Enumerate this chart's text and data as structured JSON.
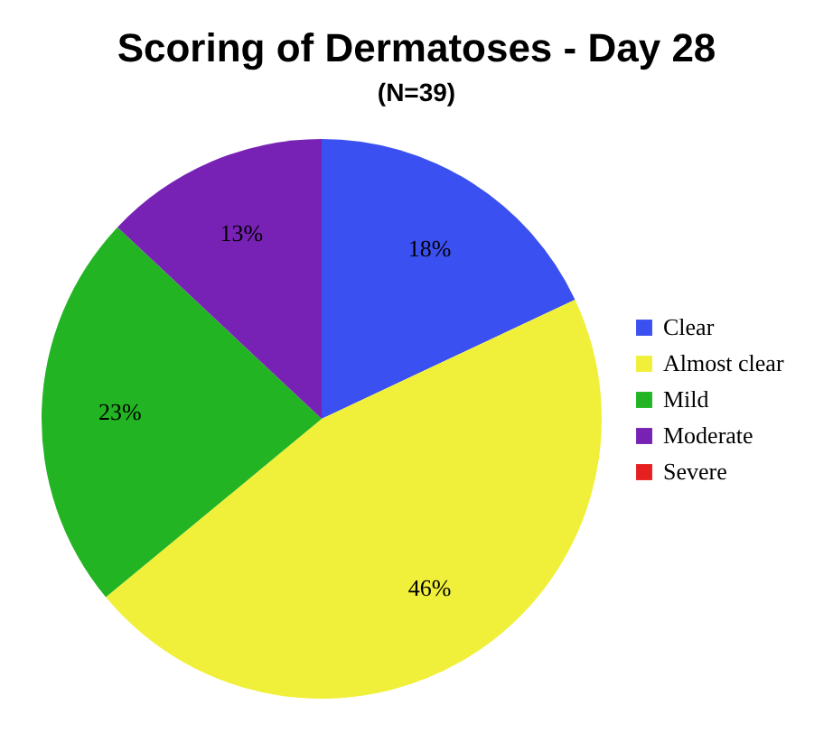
{
  "chart_data": {
    "type": "pie",
    "title": "Scoring of Dermatoses - Day 28",
    "subtitle": "(N=39)",
    "categories": [
      "Clear",
      "Almost clear",
      "Mild",
      "Moderate",
      "Severe"
    ],
    "values": [
      18,
      46,
      23,
      13,
      0
    ],
    "colors": [
      "#3b50f0",
      "#f0f03a",
      "#22b422",
      "#7722b4",
      "#e62020"
    ],
    "value_labels": [
      "18%",
      "46%",
      "23%",
      "13%",
      null
    ],
    "legend": "right"
  }
}
